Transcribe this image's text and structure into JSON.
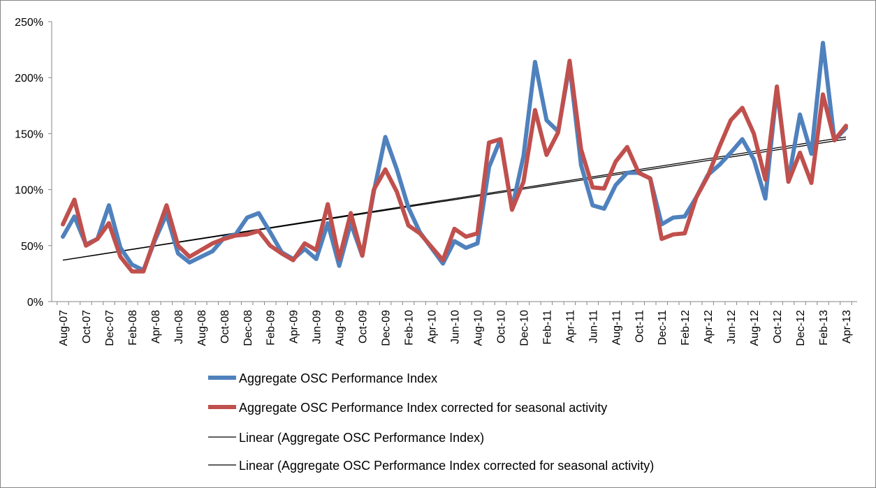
{
  "chart_data": {
    "type": "line",
    "title": "",
    "xlabel": "",
    "ylabel": "",
    "ylim": [
      0,
      2.5
    ],
    "y_tick_step": 0.5,
    "y_tick_labels": [
      "0%",
      "50%",
      "100%",
      "150%",
      "200%",
      "250%"
    ],
    "grid": false,
    "legend_position": "bottom",
    "x": [
      "Aug-07",
      "Sep-07",
      "Oct-07",
      "Nov-07",
      "Dec-07",
      "Jan-08",
      "Feb-08",
      "Mar-08",
      "Apr-08",
      "May-08",
      "Jun-08",
      "Jul-08",
      "Aug-08",
      "Sep-08",
      "Oct-08",
      "Nov-08",
      "Dec-08",
      "Jan-09",
      "Feb-09",
      "Mar-09",
      "Apr-09",
      "May-09",
      "Jun-09",
      "Jul-09",
      "Aug-09",
      "Sep-09",
      "Oct-09",
      "Nov-09",
      "Dec-09",
      "Jan-10",
      "Feb-10",
      "Mar-10",
      "Apr-10",
      "May-10",
      "Jun-10",
      "Jul-10",
      "Aug-10",
      "Sep-10",
      "Oct-10",
      "Nov-10",
      "Dec-10",
      "Jan-11",
      "Feb-11",
      "Mar-11",
      "Apr-11",
      "May-11",
      "Jun-11",
      "Jul-11",
      "Aug-11",
      "Sep-11",
      "Oct-11",
      "Nov-11",
      "Dec-11",
      "Jan-12",
      "Feb-12",
      "Mar-12",
      "Apr-12",
      "May-12",
      "Jun-12",
      "Jul-12",
      "Aug-12",
      "Sep-12",
      "Oct-12",
      "Nov-12",
      "Dec-12",
      "Jan-13",
      "Feb-13",
      "Mar-13",
      "Apr-13"
    ],
    "x_tick_labels": [
      "Aug-07",
      "Oct-07",
      "Dec-07",
      "Feb-08",
      "Apr-08",
      "Jun-08",
      "Aug-08",
      "Oct-08",
      "Dec-08",
      "Feb-09",
      "Apr-09",
      "Jun-09",
      "Aug-09",
      "Oct-09",
      "Dec-09",
      "Feb-10",
      "Apr-10",
      "Jun-10",
      "Aug-10",
      "Oct-10",
      "Dec-10",
      "Feb-11",
      "Apr-11",
      "Jun-11",
      "Aug-11",
      "Oct-11",
      "Dec-11",
      "Feb-12",
      "Apr-12",
      "Jun-12",
      "Aug-12",
      "Oct-12",
      "Dec-12",
      "Feb-13",
      "Apr-13"
    ],
    "series": [
      {
        "name": "Aggregate OSC Performance Index",
        "color": "#4F81BD",
        "style": "thick",
        "values": [
          0.58,
          0.76,
          0.51,
          0.56,
          0.86,
          0.48,
          0.33,
          0.28,
          0.55,
          0.78,
          0.43,
          0.35,
          0.4,
          0.45,
          0.57,
          0.6,
          0.75,
          0.79,
          0.62,
          0.44,
          0.38,
          0.47,
          0.38,
          0.7,
          0.32,
          0.7,
          0.41,
          0.98,
          1.47,
          1.18,
          0.84,
          0.62,
          0.48,
          0.34,
          0.54,
          0.48,
          0.52,
          1.2,
          1.45,
          0.83,
          1.3,
          2.14,
          1.62,
          1.52,
          2.11,
          1.22,
          0.86,
          0.83,
          1.04,
          1.15,
          1.15,
          1.1,
          0.69,
          0.75,
          0.76,
          0.93,
          1.13,
          1.22,
          1.33,
          1.45,
          1.27,
          0.92,
          1.9,
          1.08,
          1.67,
          1.32,
          2.31,
          1.44,
          1.55
        ]
      },
      {
        "name": "Aggregate OSC Performance Index corrected for seasonal activity",
        "color": "#C0504D",
        "style": "thick",
        "values": [
          0.69,
          0.91,
          0.5,
          0.56,
          0.7,
          0.4,
          0.27,
          0.27,
          0.57,
          0.86,
          0.5,
          0.4,
          0.46,
          0.52,
          0.56,
          0.59,
          0.6,
          0.63,
          0.5,
          0.43,
          0.37,
          0.52,
          0.46,
          0.87,
          0.38,
          0.79,
          0.41,
          1.0,
          1.18,
          0.98,
          0.68,
          0.61,
          0.49,
          0.37,
          0.65,
          0.58,
          0.61,
          1.42,
          1.45,
          0.82,
          1.07,
          1.71,
          1.31,
          1.51,
          2.15,
          1.36,
          1.02,
          1.01,
          1.25,
          1.38,
          1.15,
          1.1,
          0.56,
          0.6,
          0.61,
          0.93,
          1.12,
          1.38,
          1.62,
          1.73,
          1.5,
          1.09,
          1.92,
          1.07,
          1.33,
          1.06,
          1.85,
          1.44,
          1.57
        ]
      },
      {
        "name": "Linear (Aggregate OSC Performance Index)",
        "color": "#000000",
        "style": "thin",
        "trend": [
          0.37,
          1.47
        ]
      },
      {
        "name": "Linear (Aggregate OSC Performance Index corrected for seasonal activity)",
        "color": "#000000",
        "style": "thin",
        "trend": [
          0.37,
          1.45
        ]
      }
    ]
  }
}
